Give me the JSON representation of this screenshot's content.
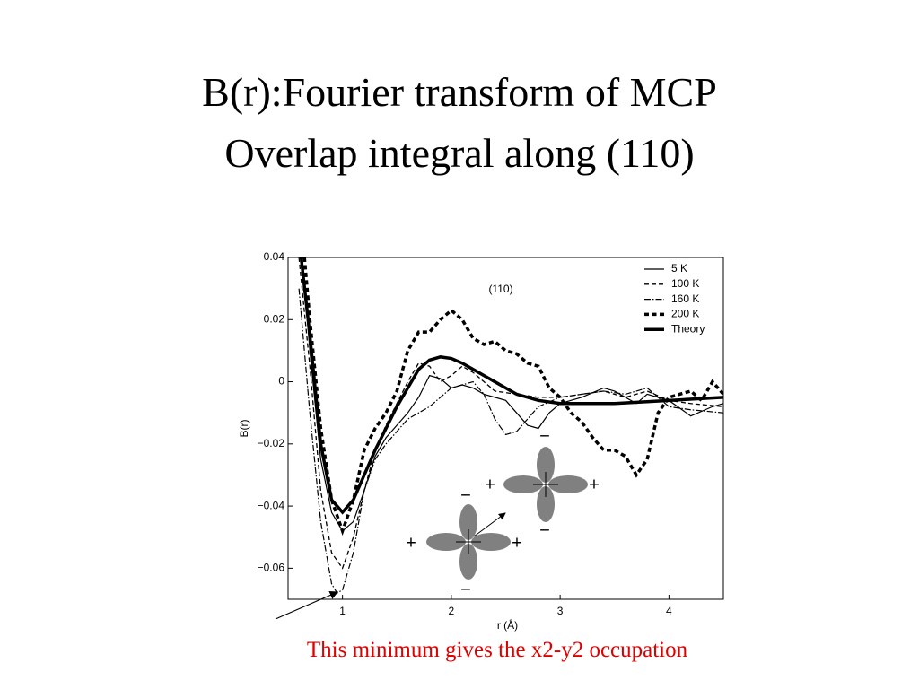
{
  "slide": {
    "title_lines": [
      "B(r):Fourier transform of MCP",
      "Overlap integral along (110)"
    ],
    "caption": "This minimum gives the x2-y2 occupation",
    "signs": [
      "−",
      "+",
      "+",
      "−",
      "−",
      "+",
      "+",
      "−"
    ]
  },
  "chart_data": {
    "type": "line",
    "annotation": "(110)",
    "xlabel": "r (Å)",
    "ylabel": "B(r)",
    "xlim": [
      0.5,
      4.5
    ],
    "xticks": [
      1,
      2,
      3,
      4
    ],
    "ylim": [
      -0.07,
      0.04
    ],
    "yticks": [
      {
        "value": -0.06,
        "label": "−0.06"
      },
      {
        "value": -0.04,
        "label": "−0.04"
      },
      {
        "value": -0.02,
        "label": "−0.02"
      },
      0,
      0.02,
      0.04
    ],
    "legend": "upper right",
    "grid": false,
    "series": [
      {
        "name": "5 K",
        "color": "#000000",
        "style": "solid",
        "x": [
          0.63,
          0.7,
          0.8,
          0.9,
          1.0,
          1.1,
          1.2,
          1.3,
          1.4,
          1.5,
          1.6,
          1.7,
          1.8,
          1.9,
          2.0,
          2.1,
          2.2,
          2.3,
          2.4,
          2.5,
          2.6,
          2.7,
          2.8,
          2.9,
          3.0,
          3.2,
          3.4,
          3.5,
          3.7,
          3.8,
          4.0,
          4.2,
          4.4,
          4.5
        ],
        "values": [
          0.04,
          0.01,
          -0.025,
          -0.042,
          -0.048,
          -0.045,
          -0.035,
          -0.024,
          -0.018,
          -0.014,
          -0.01,
          -0.005,
          0.002,
          0.001,
          -0.002,
          -0.001,
          -0.002,
          -0.004,
          -0.005,
          -0.006,
          -0.01,
          -0.014,
          -0.015,
          -0.01,
          -0.007,
          -0.005,
          -0.002,
          -0.003,
          -0.007,
          -0.004,
          -0.006,
          -0.011,
          -0.008,
          -0.007
        ]
      },
      {
        "name": "100 K",
        "color": "#000000",
        "style": "dashed",
        "x": [
          0.6,
          0.7,
          0.8,
          0.9,
          1.0,
          1.1,
          1.2,
          1.3,
          1.4,
          1.5,
          1.6,
          1.7,
          1.8,
          1.9,
          2.0,
          2.1,
          2.2,
          2.3,
          2.4,
          2.6,
          2.8,
          3.0,
          3.2,
          3.4,
          3.6,
          3.8,
          4.0,
          4.2,
          4.5
        ],
        "values": [
          0.04,
          0.005,
          -0.035,
          -0.055,
          -0.06,
          -0.05,
          -0.035,
          -0.022,
          -0.014,
          -0.007,
          0.0,
          0.006,
          0.005,
          0.0,
          0.002,
          0.005,
          0.003,
          0.0,
          -0.003,
          -0.004,
          -0.005,
          -0.005,
          -0.004,
          -0.003,
          -0.005,
          -0.003,
          -0.006,
          -0.007,
          -0.008
        ]
      },
      {
        "name": "160 K",
        "color": "#000000",
        "style": "dashdot",
        "x": [
          0.6,
          0.7,
          0.8,
          0.9,
          0.95,
          1.0,
          1.1,
          1.2,
          1.3,
          1.4,
          1.5,
          1.6,
          1.7,
          1.8,
          1.9,
          2.0,
          2.1,
          2.2,
          2.3,
          2.4,
          2.5,
          2.6,
          2.7,
          2.8,
          3.0,
          3.2,
          3.4,
          3.6,
          3.8,
          4.0,
          4.2,
          4.5
        ],
        "values": [
          0.03,
          -0.01,
          -0.045,
          -0.065,
          -0.068,
          -0.067,
          -0.055,
          -0.035,
          -0.025,
          -0.02,
          -0.016,
          -0.012,
          -0.01,
          -0.008,
          -0.005,
          -0.002,
          -0.001,
          0.0,
          -0.004,
          -0.012,
          -0.017,
          -0.016,
          -0.012,
          -0.008,
          -0.005,
          -0.004,
          -0.003,
          -0.004,
          -0.002,
          -0.008,
          -0.009,
          -0.01
        ]
      },
      {
        "name": "200 K",
        "color": "#000000",
        "style": "dotted-thick",
        "x": [
          0.65,
          0.7,
          0.8,
          0.9,
          1.0,
          1.1,
          1.2,
          1.3,
          1.4,
          1.5,
          1.6,
          1.7,
          1.8,
          1.9,
          2.0,
          2.1,
          2.2,
          2.3,
          2.4,
          2.5,
          2.6,
          2.7,
          2.8,
          2.9,
          3.0,
          3.1,
          3.2,
          3.3,
          3.4,
          3.5,
          3.6,
          3.7,
          3.8,
          3.9,
          4.0,
          4.2,
          4.3,
          4.4,
          4.5
        ],
        "values": [
          0.04,
          0.02,
          -0.015,
          -0.038,
          -0.048,
          -0.038,
          -0.022,
          -0.015,
          -0.01,
          -0.003,
          0.01,
          0.016,
          0.016,
          0.02,
          0.023,
          0.02,
          0.014,
          0.012,
          0.013,
          0.01,
          0.009,
          0.006,
          0.005,
          -0.002,
          -0.005,
          -0.01,
          -0.013,
          -0.018,
          -0.022,
          -0.022,
          -0.024,
          -0.03,
          -0.025,
          -0.01,
          -0.005,
          -0.003,
          -0.006,
          0.0,
          -0.004
        ]
      },
      {
        "name": "Theory",
        "color": "#000000",
        "style": "thick",
        "x": [
          0.62,
          0.7,
          0.8,
          0.9,
          1.0,
          1.1,
          1.2,
          1.3,
          1.4,
          1.5,
          1.6,
          1.7,
          1.8,
          1.9,
          2.0,
          2.1,
          2.2,
          2.3,
          2.4,
          2.5,
          2.6,
          2.7,
          2.8,
          3.0,
          3.2,
          3.5,
          4.0,
          4.5
        ],
        "values": [
          0.04,
          0.015,
          -0.02,
          -0.038,
          -0.042,
          -0.038,
          -0.03,
          -0.022,
          -0.015,
          -0.008,
          -0.002,
          0.004,
          0.007,
          0.008,
          0.0075,
          0.006,
          0.004,
          0.002,
          0.0,
          -0.002,
          -0.004,
          -0.005,
          -0.006,
          -0.007,
          -0.007,
          -0.007,
          -0.006,
          -0.005
        ]
      }
    ]
  }
}
